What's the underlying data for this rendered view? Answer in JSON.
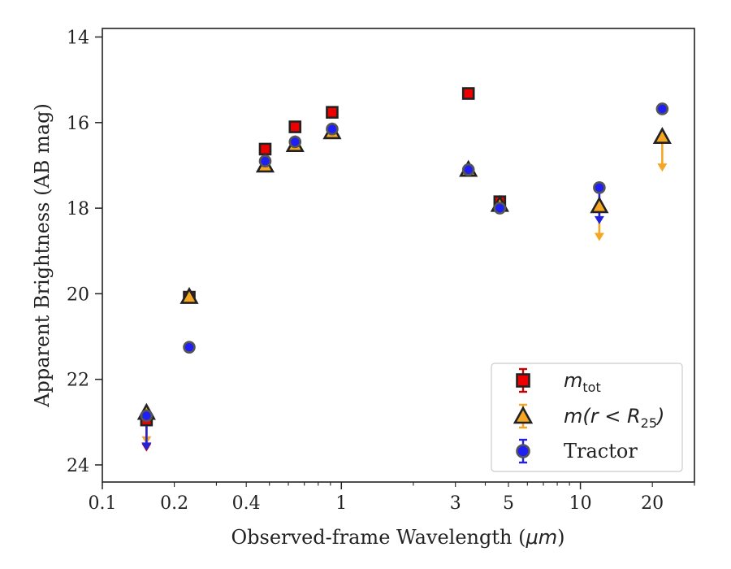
{
  "chart_data": {
    "type": "scatter",
    "title": "",
    "xlabel_prefix": "Observed-frame Wavelength (",
    "xlabel_unit": "μm",
    "xlabel_suffix": ")",
    "ylabel": "Apparent Brightness (AB mag)",
    "xscale": "log",
    "xlim": [
      0.1,
      30
    ],
    "ylim": [
      24.4,
      13.8
    ],
    "y_inverted": true,
    "grid": false,
    "legend_placement": "lower-right",
    "x_tick_labels": [
      {
        "value": 0.1,
        "label": "0.1"
      },
      {
        "value": 0.2,
        "label": "0.2"
      },
      {
        "value": 0.4,
        "label": "0.4"
      },
      {
        "value": 1,
        "label": "1"
      },
      {
        "value": 3,
        "label": "3"
      },
      {
        "value": 5,
        "label": "5"
      },
      {
        "value": 10,
        "label": "10"
      },
      {
        "value": 20,
        "label": "20"
      }
    ],
    "y_tick_labels": [
      {
        "value": 14,
        "label": "14"
      },
      {
        "value": 16,
        "label": "16"
      },
      {
        "value": 18,
        "label": "18"
      },
      {
        "value": 20,
        "label": "20"
      },
      {
        "value": 22,
        "label": "22"
      },
      {
        "value": 24,
        "label": "24"
      }
    ],
    "series": [
      {
        "name": "m_tot",
        "legend_symbol": "m",
        "legend_subscript": "tot",
        "marker": "square",
        "color": "#ee0000",
        "errcolor": "#cc0000",
        "points": [
          {
            "x": 0.153,
            "y": 22.95,
            "upper_limit": true
          },
          {
            "x": 0.231,
            "y": 20.08
          },
          {
            "x": 0.48,
            "y": 16.62
          },
          {
            "x": 0.64,
            "y": 16.1
          },
          {
            "x": 0.915,
            "y": 15.76
          },
          {
            "x": 3.4,
            "y": 15.32
          },
          {
            "x": 4.6,
            "y": 17.85
          }
        ]
      },
      {
        "name": "m(r < R25)",
        "legend_symbol": "m(r < R",
        "legend_subscript": "25",
        "legend_close": ")",
        "marker": "triangle",
        "color": "#f5a623",
        "errcolor": "#f5a623",
        "points": [
          {
            "x": 0.153,
            "y": 22.78,
            "upper_limit": true
          },
          {
            "x": 0.231,
            "y": 20.07
          },
          {
            "x": 0.48,
            "y": 17.0
          },
          {
            "x": 0.64,
            "y": 16.52
          },
          {
            "x": 0.915,
            "y": 16.22
          },
          {
            "x": 3.4,
            "y": 17.1
          },
          {
            "x": 4.6,
            "y": 17.92
          },
          {
            "x": 12.0,
            "y": 17.95,
            "upper_limit": true
          },
          {
            "x": 22.0,
            "y": 16.33,
            "upper_limit": true
          }
        ]
      },
      {
        "name": "Tractor",
        "legend_symbol": "Tractor",
        "marker": "circle",
        "color": "#1f1ff5",
        "errcolor": "#2222dd",
        "points": [
          {
            "x": 0.153,
            "y": 22.85,
            "upper_limit": true
          },
          {
            "x": 0.231,
            "y": 21.25
          },
          {
            "x": 0.48,
            "y": 16.9
          },
          {
            "x": 0.64,
            "y": 16.45
          },
          {
            "x": 0.915,
            "y": 16.15
          },
          {
            "x": 3.4,
            "y": 17.1
          },
          {
            "x": 4.6,
            "y": 18.0
          },
          {
            "x": 12.0,
            "y": 17.52,
            "upper_limit": true
          },
          {
            "x": 22.0,
            "y": 15.68
          }
        ]
      }
    ]
  }
}
